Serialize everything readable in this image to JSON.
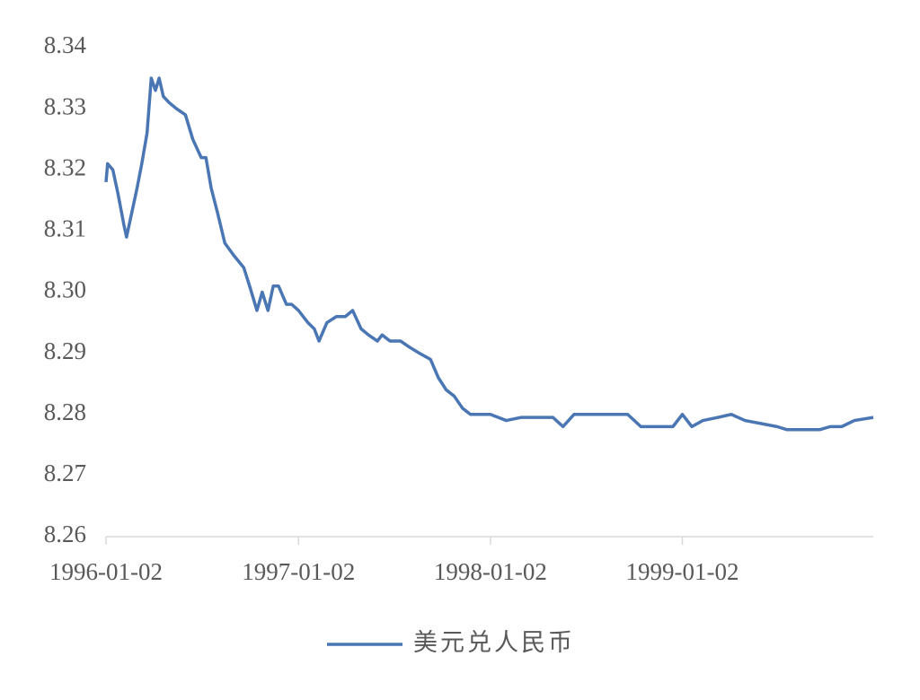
{
  "chart_data": {
    "type": "line",
    "x": [
      "1996-01-02",
      "1996-01-05",
      "1996-01-15",
      "1996-01-25",
      "1996-02-05",
      "1996-02-10",
      "1996-02-20",
      "1996-03-01",
      "1996-03-10",
      "1996-03-20",
      "1996-03-28",
      "1996-04-05",
      "1996-04-12",
      "1996-04-20",
      "1996-05-01",
      "1996-05-15",
      "1996-06-01",
      "1996-06-15",
      "1996-07-01",
      "1996-07-10",
      "1996-07-20",
      "1996-08-01",
      "1996-08-15",
      "1996-09-01",
      "1996-09-20",
      "1996-10-01",
      "1996-10-15",
      "1996-10-25",
      "1996-11-05",
      "1996-11-15",
      "1996-11-25",
      "1996-12-10",
      "1996-12-20",
      "1997-01-02",
      "1997-01-20",
      "1997-02-01",
      "1997-02-10",
      "1997-02-25",
      "1997-03-15",
      "1997-04-01",
      "1997-04-15",
      "1997-05-01",
      "1997-05-15",
      "1997-06-01",
      "1997-06-10",
      "1997-06-25",
      "1997-07-15",
      "1997-08-01",
      "1997-08-20",
      "1997-09-10",
      "1997-09-25",
      "1997-10-10",
      "1997-10-25",
      "1997-11-10",
      "1997-11-25",
      "1997-12-10",
      "1998-01-02",
      "1998-02-01",
      "1998-03-01",
      "1998-04-01",
      "1998-05-01",
      "1998-05-20",
      "1998-06-10",
      "1998-07-01",
      "1998-08-01",
      "1998-09-01",
      "1998-09-20",
      "1998-10-15",
      "1998-11-15",
      "1998-12-15",
      "1999-01-02",
      "1999-01-20",
      "1999-02-10",
      "1999-03-10",
      "1999-04-05",
      "1999-05-01",
      "1999-06-01",
      "1999-07-01",
      "1999-07-20",
      "1999-08-20",
      "1999-09-20",
      "1999-10-10",
      "1999-11-01",
      "1999-11-25",
      "1999-12-31"
    ],
    "series": [
      {
        "name": "美元兑人民币",
        "color": "#4a77b4",
        "values": [
          8.318,
          8.321,
          8.32,
          8.316,
          8.311,
          8.309,
          8.313,
          8.317,
          8.321,
          8.326,
          8.335,
          8.333,
          8.335,
          8.332,
          8.331,
          8.33,
          8.329,
          8.325,
          8.322,
          8.322,
          8.317,
          8.313,
          8.308,
          8.306,
          8.304,
          8.301,
          8.297,
          8.3,
          8.297,
          8.301,
          8.301,
          8.298,
          8.298,
          8.297,
          8.295,
          8.294,
          8.292,
          8.295,
          8.296,
          8.296,
          8.297,
          8.294,
          8.293,
          8.292,
          8.293,
          8.292,
          8.292,
          8.291,
          8.29,
          8.289,
          8.286,
          8.284,
          8.283,
          8.281,
          8.28,
          8.28,
          8.28,
          8.279,
          8.2795,
          8.2795,
          8.2795,
          8.278,
          8.28,
          8.28,
          8.28,
          8.28,
          8.28,
          8.278,
          8.278,
          8.278,
          8.28,
          8.278,
          8.279,
          8.2795,
          8.28,
          8.279,
          8.2785,
          8.278,
          8.2775,
          8.2775,
          8.2775,
          8.278,
          8.278,
          8.279,
          8.2795
        ]
      }
    ],
    "xlim": [
      "1996-01-02",
      "1999-12-31"
    ],
    "xticks": [
      "1996-01-02",
      "1997-01-02",
      "1998-01-02",
      "1999-01-02"
    ],
    "ylim": [
      8.26,
      8.34
    ],
    "yticks": [
      8.26,
      8.27,
      8.28,
      8.29,
      {
        "value": 8.3,
        "label": "8.30"
      },
      8.31,
      8.32,
      8.33,
      8.34
    ],
    "legend": "bottom"
  }
}
